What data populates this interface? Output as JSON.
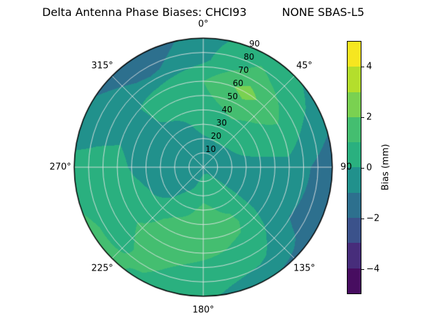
{
  "title": "Delta Antenna Phase Biases: CHCI93          NONE SBAS-L5",
  "chart_data": {
    "type": "heatmap",
    "style": "filled-contour",
    "projection": "polar",
    "title": "Delta Antenna Phase Biases: CHCI93          NONE SBAS-L5",
    "grid_on": true,
    "rlabel_angle_deg": 22.5,
    "angular_ticks": [
      {
        "deg": 0,
        "label": "0°"
      },
      {
        "deg": 45,
        "label": "45°"
      },
      {
        "deg": 90,
        "label": "90"
      },
      {
        "deg": 135,
        "label": "135°"
      },
      {
        "deg": 180,
        "label": "180°"
      },
      {
        "deg": 225,
        "label": "225°"
      },
      {
        "deg": 270,
        "label": "270°"
      },
      {
        "deg": 315,
        "label": "315°"
      }
    ],
    "radial_ticks": [
      {
        "r": 10,
        "label": "10"
      },
      {
        "r": 20,
        "label": "20"
      },
      {
        "r": 30,
        "label": "30"
      },
      {
        "r": 40,
        "label": "40"
      },
      {
        "r": 50,
        "label": "50"
      },
      {
        "r": 60,
        "label": "60"
      },
      {
        "r": 70,
        "label": "70"
      },
      {
        "r": 80,
        "label": "80"
      },
      {
        "r": 90,
        "label": "90"
      }
    ],
    "colorbar": {
      "label": "Bias (mm)",
      "range": [
        -5,
        5
      ],
      "ticks": [
        {
          "value": -4,
          "label": "−4"
        },
        {
          "value": -2,
          "label": "−2"
        },
        {
          "value": 0,
          "label": "0"
        },
        {
          "value": 2,
          "label": "2"
        },
        {
          "value": 4,
          "label": "4"
        }
      ],
      "band_colors": [
        "#470d60",
        "#472d7b",
        "#3b528b",
        "#2d708e",
        "#21918c",
        "#2ab07f",
        "#44be70",
        "#7ad151",
        "#b4de2c",
        "#f6e620"
      ]
    },
    "grid": {
      "azimuth_deg": [
        0,
        30,
        60,
        90,
        120,
        150,
        180,
        210,
        240,
        270,
        300,
        330
      ],
      "radius": [
        0,
        15,
        30,
        45,
        60,
        75,
        90
      ],
      "values": [
        [
          -0.3,
          -0.3,
          -0.3,
          -0.3,
          -0.3,
          -0.3,
          -0.3,
          -0.3,
          -0.3,
          -0.3,
          -0.3,
          -0.3
        ],
        [
          -0.3,
          -0.2,
          -0.3,
          -0.3,
          -0.3,
          0.6,
          0.6,
          -0.2,
          -0.6,
          -0.6,
          -0.3,
          -0.3
        ],
        [
          0.3,
          0.6,
          0.3,
          -0.3,
          -0.3,
          0.8,
          1.2,
          0.6,
          -0.6,
          -0.7,
          -0.3,
          -0.3
        ],
        [
          0.7,
          1.3,
          0.7,
          -0.3,
          -0.5,
          1.2,
          1.4,
          1.2,
          0.4,
          -0.3,
          -0.3,
          0.3
        ],
        [
          1.0,
          2.4,
          1.0,
          -0.3,
          -0.7,
          0.8,
          1.2,
          1.4,
          0.8,
          0.3,
          -0.3,
          0.4
        ],
        [
          -0.2,
          1.3,
          0.3,
          -1.0,
          -1.2,
          0.3,
          0.6,
          1.2,
          0.6,
          0.3,
          -0.5,
          -1.2
        ],
        [
          -0.4,
          0.6,
          -0.3,
          -1.7,
          -1.4,
          -0.9,
          0.3,
          0.9,
          1.3,
          0.3,
          -0.9,
          -1.8
        ]
      ]
    }
  }
}
